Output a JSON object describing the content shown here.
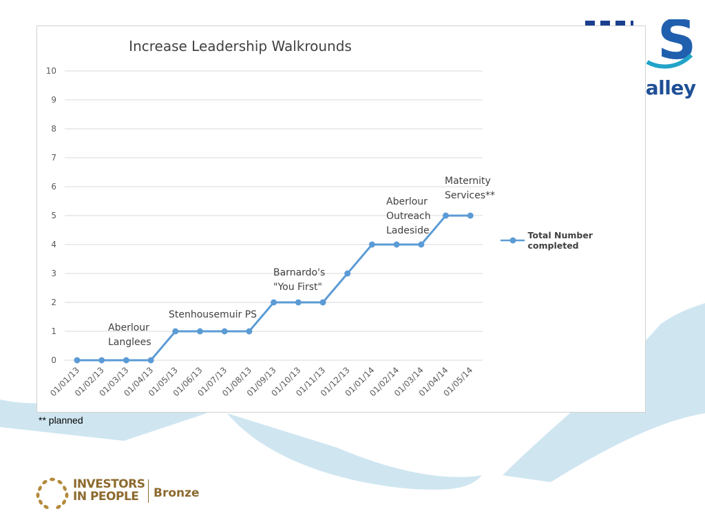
{
  "slide": {
    "footnote": "** planned",
    "logo_top": {
      "partial_word": "valley"
    },
    "logo_bottom": {
      "line1": "INVESTORS",
      "line2": "IN PEOPLE",
      "level": "Bronze"
    },
    "colors": {
      "wave": "#cfe6f1",
      "nhs_blue": "#1f5fae",
      "gold": "#8c6a2e"
    }
  },
  "chart_data": {
    "type": "line",
    "title": "Increase Leadership Walkrounds",
    "xlabel": "",
    "ylabel": "",
    "categories": [
      "01/01/13",
      "01/02/13",
      "01/03/13",
      "01/04/13",
      "01/05/13",
      "01/06/13",
      "01/07/13",
      "01/08/13",
      "01/09/13",
      "01/10/13",
      "01/11/13",
      "01/12/13",
      "01/01/14",
      "01/02/14",
      "01/03/14",
      "01/04/14",
      "01/05/14"
    ],
    "series": [
      {
        "name": "Total Number completed",
        "values": [
          0,
          0,
          0,
          0,
          1,
          1,
          1,
          1,
          2,
          2,
          2,
          3,
          4,
          4,
          4,
          5,
          5
        ],
        "color": "#5b9bd5"
      }
    ],
    "ylim": [
      0,
      10
    ],
    "yticks": [
      0,
      1,
      2,
      3,
      4,
      5,
      6,
      7,
      8,
      9,
      10
    ],
    "grid": "horizontal",
    "legend_position": "right",
    "annotations": [
      {
        "text": "Aberlour\nLanglees"
      },
      {
        "text": "Stenhousemuir PS"
      },
      {
        "text": "Barnardo's\n\"You First\""
      },
      {
        "text": "Aberlour\nOutreach\nLadeside"
      },
      {
        "text": "Maternity\nServices**"
      }
    ]
  }
}
